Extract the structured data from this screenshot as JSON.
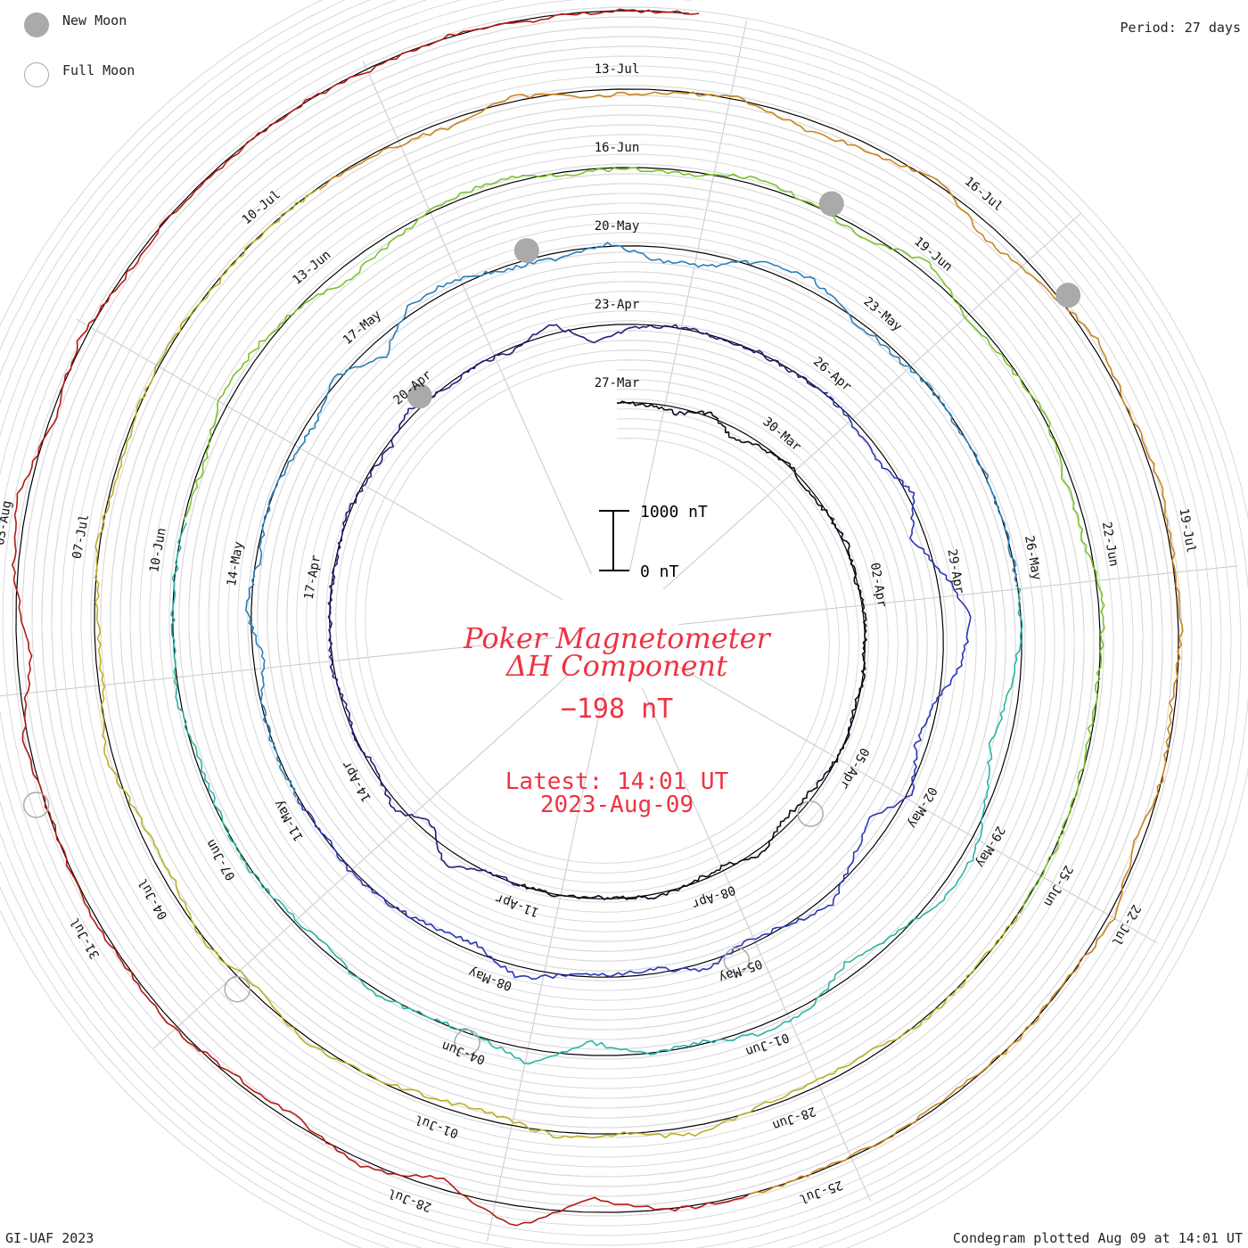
{
  "legend": {
    "new_moon_label": "New Moon",
    "full_moon_label": "Full Moon",
    "new_moon_color": "#aaaaaa"
  },
  "period_label": "Period: 27 days",
  "footer": {
    "credit": "GI-UAF 2023",
    "plotted": "Condegram plotted Aug 09 at 14:01 UT"
  },
  "center": {
    "title1": "Poker Magnetometer",
    "title2": "ΔH Component",
    "value": "−198 nT",
    "latest": "Latest: 14:01 UT",
    "date": "2023-Aug-09",
    "color": "#ee3344"
  },
  "scale_bar": {
    "top_label": "1000 nT",
    "bottom_label": "0 nT"
  },
  "chart_data": {
    "type": "line",
    "title": "Poker Magnetometer ΔH Component",
    "period_days": 27,
    "start_date": "2023-03-27",
    "end_date": "2023-08-09",
    "units": "nT",
    "scale_nT": [
      0,
      1000
    ],
    "latest_value_nT": -198,
    "series": [
      {
        "color": "#0a0a1e",
        "values": [
          0,
          30,
          80,
          -60,
          150,
          40,
          -20,
          60,
          0,
          -40,
          20,
          -10,
          10,
          0,
          30,
          -30,
          20,
          80,
          100,
          -80,
          60,
          40,
          -50,
          0,
          20,
          -10,
          10
        ]
      },
      {
        "color": "#21207a",
        "values": [
          0,
          20,
          -200,
          150,
          -100,
          60,
          0,
          40,
          -30,
          20,
          0,
          10,
          -20,
          30,
          60,
          -80,
          40,
          0,
          50,
          -150,
          250,
          60,
          -20,
          10,
          0,
          20,
          -10
        ]
      },
      {
        "color": "#2c36b5",
        "values": [
          0,
          60,
          120,
          -80,
          200,
          -120,
          -400,
          -250,
          80,
          150,
          -60,
          300,
          100,
          -150,
          0,
          80,
          -100,
          60,
          40,
          0,
          -150,
          120,
          60,
          0,
          -50,
          30,
          -20
        ]
      },
      {
        "color": "#2b7fb8",
        "values": [
          0,
          -20,
          10,
          150,
          -80,
          60,
          0,
          40,
          100,
          -60,
          250,
          -120,
          -100,
          60,
          80,
          -40,
          200,
          180,
          -100,
          -150,
          40,
          60,
          0,
          20,
          -10,
          10,
          0
        ]
      },
      {
        "color": "#29b5a3",
        "values": [
          0,
          20,
          150,
          250,
          80,
          -150,
          -120,
          60,
          200,
          -80,
          -100,
          40,
          0,
          200,
          -200,
          30,
          0,
          -60,
          80,
          40,
          -20,
          20,
          60,
          -40,
          10,
          0,
          20
        ]
      },
      {
        "color": "#7cc12e",
        "values": [
          0,
          60,
          -120,
          -100,
          0,
          200,
          100,
          -60,
          -80,
          40,
          30,
          60,
          -100,
          0,
          120,
          -150,
          60,
          40,
          -30,
          100,
          80,
          -60,
          0,
          40,
          20,
          -10,
          0
        ]
      },
      {
        "color": "#b8b224",
        "values": [
          0,
          20,
          -40,
          60,
          80,
          40,
          -120,
          0,
          -60,
          120,
          80,
          0,
          -60,
          100,
          -40,
          120,
          80,
          -100,
          60,
          50,
          -30,
          60,
          0,
          -40,
          30,
          0,
          10
        ]
      },
      {
        "color": "#c8861c",
        "values": [
          0,
          40,
          100,
          -60,
          80,
          60,
          -40,
          150,
          100,
          -40,
          200,
          60,
          -100,
          0,
          -60,
          -20,
          -40,
          60,
          0,
          100,
          -80,
          40,
          -30,
          60,
          0,
          20,
          -10
        ]
      },
      {
        "color": "#b21a12",
        "values": [
          0,
          -20,
          200,
          -300,
          150,
          -100,
          100,
          60,
          -50,
          -20,
          -30,
          20,
          -60,
          200,
          -40,
          -150,
          80,
          -60,
          40,
          0,
          20,
          0,
          40,
          -20,
          30,
          0,
          10
        ]
      }
    ],
    "date_labels": [
      "27-Mar",
      "30-Mar",
      "02-Apr",
      "05-Apr",
      "08-Apr",
      "11-Apr",
      "14-Apr",
      "17-Apr",
      "20-Apr",
      "23-Apr",
      "26-Apr",
      "29-Apr",
      "02-May",
      "05-May",
      "08-May",
      "11-May",
      "14-May",
      "17-May",
      "20-May",
      "23-May",
      "26-May",
      "29-May",
      "01-Jun",
      "04-Jun",
      "07-Jun",
      "10-Jun",
      "13-Jun",
      "16-Jun",
      "19-Jun",
      "22-Jun",
      "25-Jun",
      "28-Jun",
      "01-Jul",
      "04-Jul",
      "07-Jul",
      "10-Jul",
      "13-Jul",
      "16-Jul",
      "19-Jul",
      "22-Jul",
      "25-Jul",
      "28-Jul",
      "31-Jul",
      "03-Aug"
    ],
    "new_moons": [
      "2023-04-20",
      "2023-05-19",
      "2023-06-18",
      "2023-07-17"
    ],
    "full_moons": [
      "2023-04-06",
      "2023-05-05",
      "2023-06-04",
      "2023-07-03",
      "2023-08-01"
    ]
  }
}
